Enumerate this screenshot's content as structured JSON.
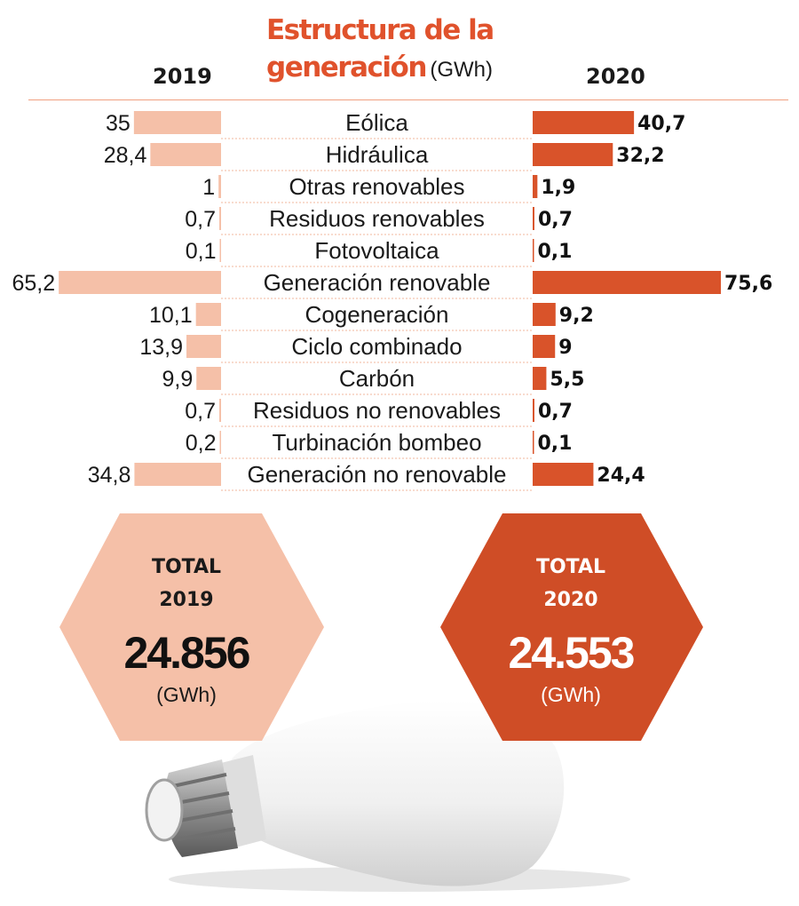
{
  "header": {
    "title_line1": "Estructura de la",
    "title_line2": "generación",
    "title_unit": "(GWh)",
    "year_left": "2019",
    "year_right": "2020"
  },
  "chart_data": {
    "type": "bar",
    "orientation": "horizontal-butterfly",
    "categories": [
      "Eólica",
      "Hidráulica",
      "Otras renovables",
      "Residuos renovables",
      "Fotovoltaica",
      "Generación renovable",
      "Cogeneración",
      "Ciclo combinado",
      "Carbón",
      "Residuos no renovables",
      "Turbinación bombeo",
      "Generación no renovable"
    ],
    "series": [
      {
        "name": "2019",
        "values": [
          35,
          28.4,
          1,
          0.7,
          0.1,
          65.2,
          10.1,
          13.9,
          9.9,
          0.7,
          0.2,
          34.8
        ],
        "labels": [
          "35",
          "28,4",
          "1",
          "0,7",
          "0,1",
          "65,2",
          "10,1",
          "13,9",
          "9,9",
          "0,7",
          "0,2",
          "34,8"
        ]
      },
      {
        "name": "2020",
        "values": [
          40.7,
          32.2,
          1.9,
          0.7,
          0.1,
          75.6,
          9.2,
          9,
          5.5,
          0.7,
          0.1,
          24.4
        ],
        "labels": [
          "40,7",
          "32,2",
          "1,9",
          "0,7",
          "0,1",
          "75,6",
          "9,2",
          "9",
          "5,5",
          "0,7",
          "0,1",
          "24,4"
        ]
      }
    ],
    "xlim": [
      0,
      75.6
    ]
  },
  "totals": [
    {
      "label_line1": "TOTAL",
      "label_line2": "2019",
      "value": "24.856",
      "unit": "(GWh)"
    },
    {
      "label_line1": "TOTAL",
      "label_line2": "2020",
      "value": "24.553",
      "unit": "(GWh)"
    }
  ],
  "colors": {
    "bar_2019": "#f5c0a8",
    "bar_2020": "#d9532a",
    "title": "#e0522c",
    "hex_2019": "#f5c0a8",
    "hex_2020": "#cf4d26",
    "bulb_glass": "#eeeeee",
    "bulb_base": "#9a9a9a"
  }
}
